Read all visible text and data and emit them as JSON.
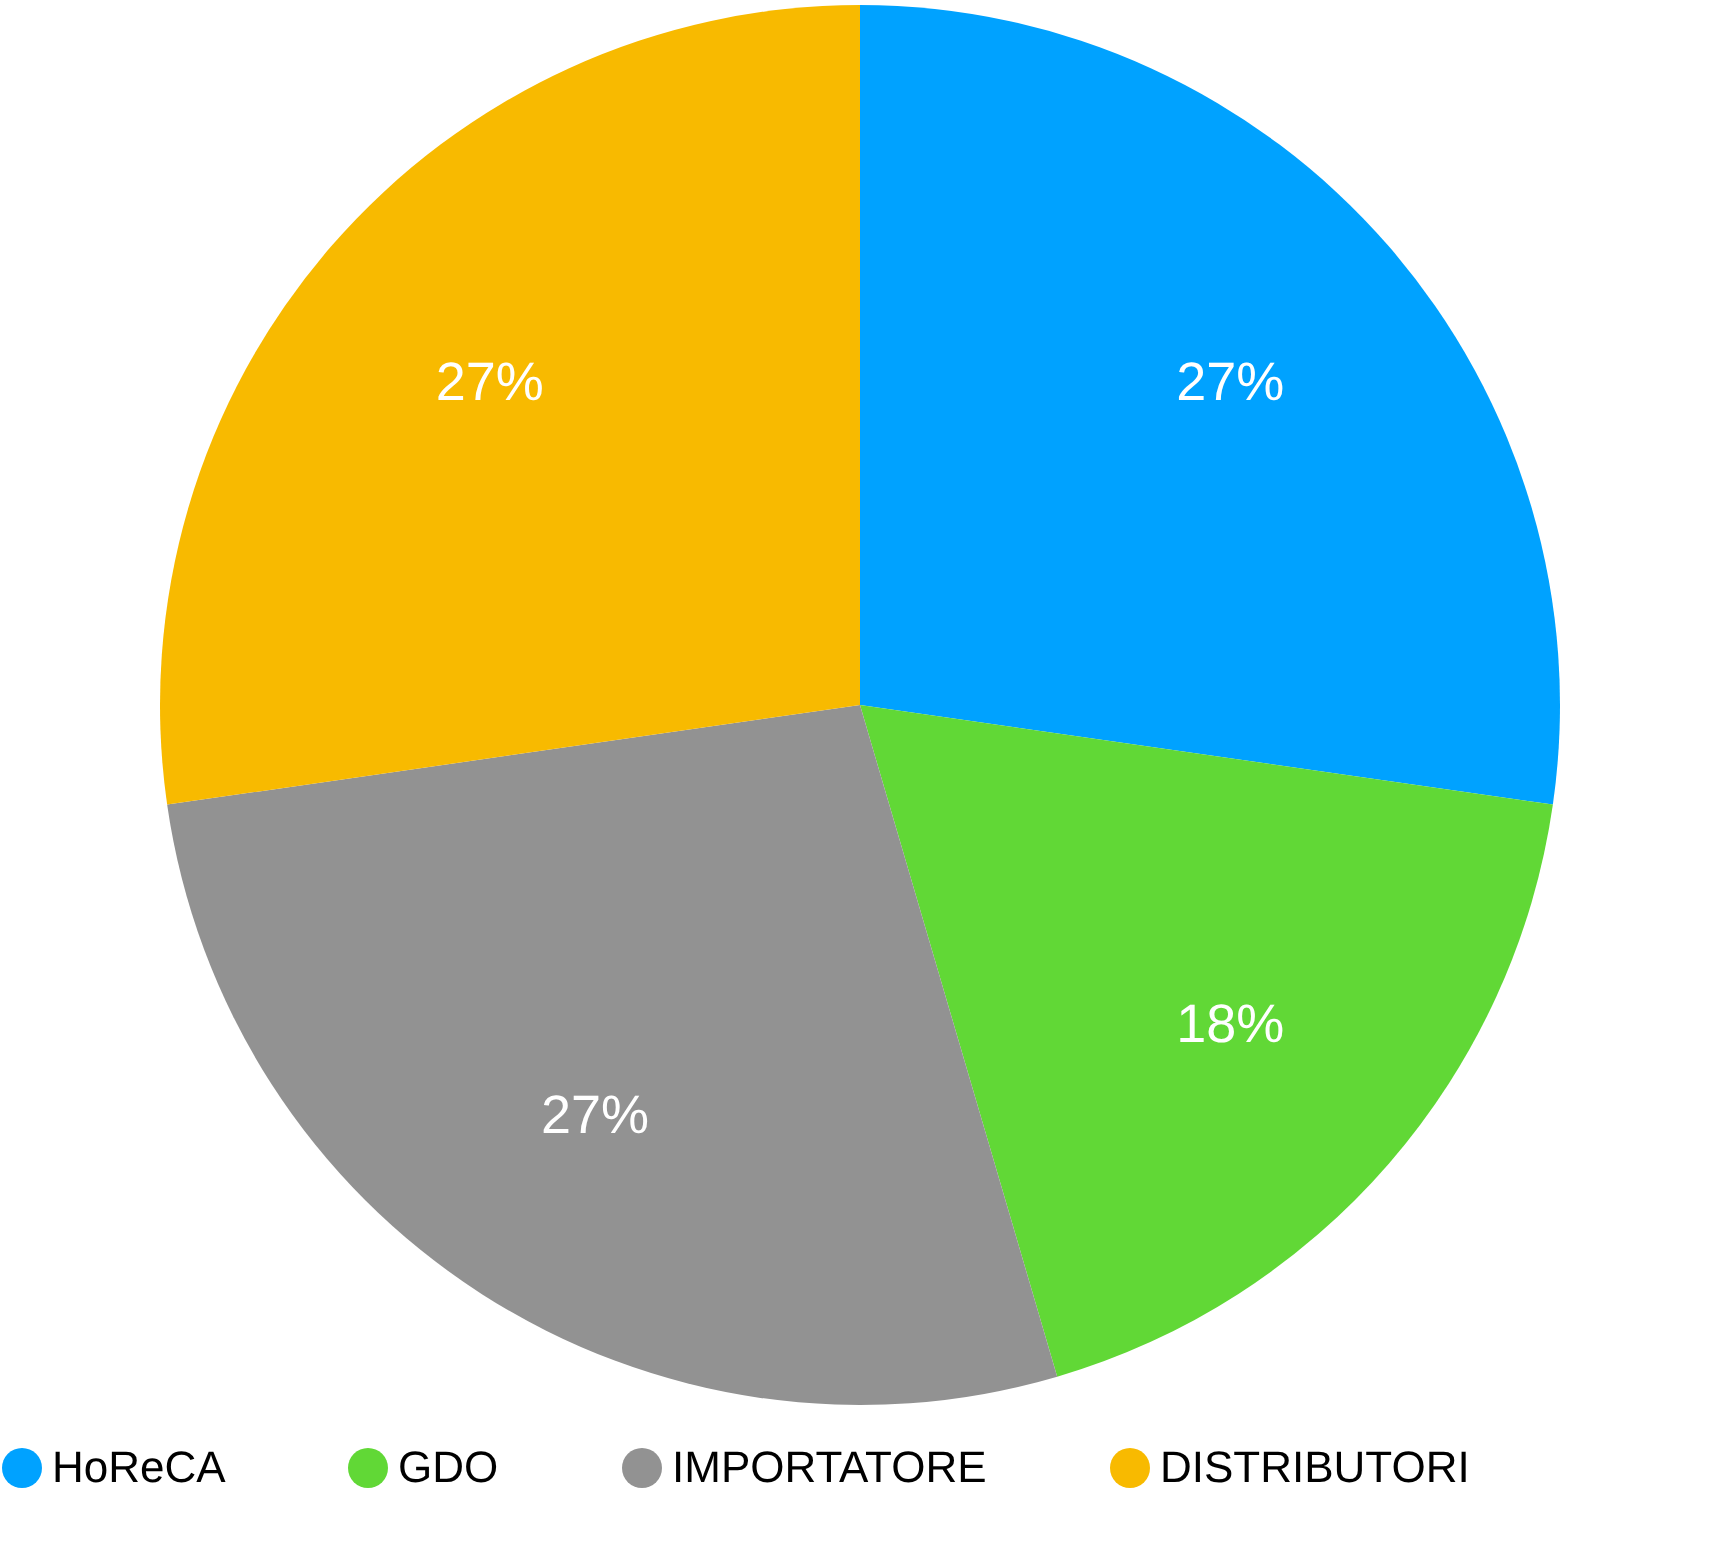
{
  "chart_data": {
    "type": "pie",
    "categories": [
      "HoReCA",
      "GDO",
      "IMPORTATORE",
      "DISTRIBUTORI"
    ],
    "values": [
      27,
      18,
      27,
      27
    ],
    "colors": [
      "#00a2ff",
      "#61d836",
      "#929292",
      "#f8ba00"
    ],
    "value_labels": [
      "27%",
      "18%",
      "27%",
      "27%"
    ],
    "legend": "bottom"
  }
}
